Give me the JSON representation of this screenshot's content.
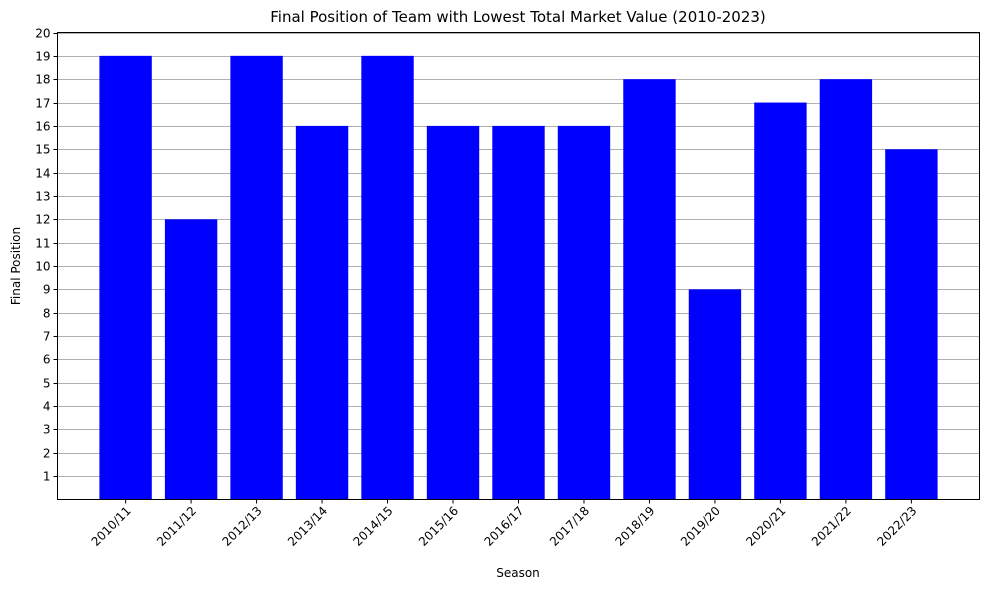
{
  "chart_data": {
    "type": "bar",
    "title": "Final Position of Team with Lowest Total Market Value (2010-2023)",
    "xlabel": "Season",
    "ylabel": "Final Position",
    "categories": [
      "2010/11",
      "2011/12",
      "2012/13",
      "2013/14",
      "2014/15",
      "2015/16",
      "2016/17",
      "2017/18",
      "2018/19",
      "2019/20",
      "2020/21",
      "2021/22",
      "2022/23"
    ],
    "values": [
      19,
      12,
      19,
      16,
      19,
      16,
      16,
      16,
      18,
      9,
      17,
      18,
      15
    ],
    "ylim": [
      0,
      20
    ],
    "yticks": [
      1,
      2,
      3,
      4,
      5,
      6,
      7,
      8,
      9,
      10,
      11,
      12,
      13,
      14,
      15,
      16,
      17,
      18,
      19,
      20
    ],
    "grid": "y",
    "bar_color": "#0000ff",
    "legend": "none"
  }
}
